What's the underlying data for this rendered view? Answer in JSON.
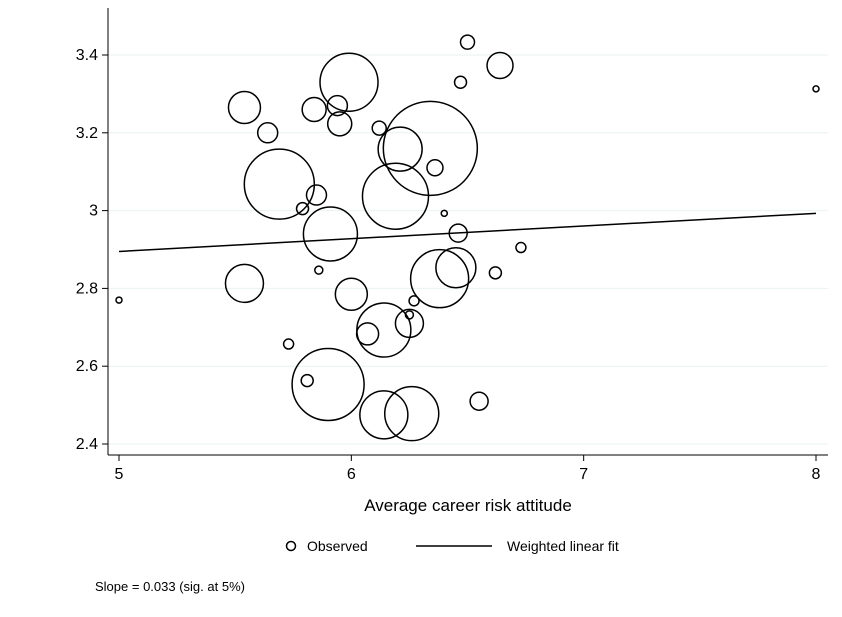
{
  "chart_data": {
    "type": "scatter",
    "title": "",
    "xlabel": "Average career risk attitude",
    "ylabel": "",
    "xlim": [
      5,
      8
    ],
    "ylim": [
      2.4,
      3.45
    ],
    "x_ticks": [
      5,
      6,
      7,
      8
    ],
    "x_tick_labels": [
      "5",
      "6",
      "7",
      "8"
    ],
    "y_ticks": [
      2.4,
      2.6,
      2.8,
      3.0,
      3.2,
      3.4
    ],
    "y_tick_labels": [
      "2.4",
      "2.6",
      "2.8",
      "3",
      "3.2",
      "3.4"
    ],
    "grid": "horizontal",
    "legend_position": "bottom",
    "series": [
      {
        "name": "Observed",
        "kind": "scatter",
        "marker": "hollow-circle",
        "points": [
          {
            "x": 5.0,
            "y": 2.77,
            "r": 3
          },
          {
            "x": 5.54,
            "y": 3.265,
            "r": 16
          },
          {
            "x": 5.54,
            "y": 2.813,
            "r": 19
          },
          {
            "x": 5.64,
            "y": 3.2,
            "r": 10
          },
          {
            "x": 5.69,
            "y": 3.068,
            "r": 35
          },
          {
            "x": 5.73,
            "y": 2.657,
            "r": 5
          },
          {
            "x": 5.79,
            "y": 3.005,
            "r": 6
          },
          {
            "x": 5.81,
            "y": 2.563,
            "r": 6
          },
          {
            "x": 5.84,
            "y": 3.26,
            "r": 12
          },
          {
            "x": 5.85,
            "y": 3.04,
            "r": 10
          },
          {
            "x": 5.86,
            "y": 2.847,
            "r": 4
          },
          {
            "x": 5.9,
            "y": 2.553,
            "r": 36
          },
          {
            "x": 5.91,
            "y": 2.94,
            "r": 27
          },
          {
            "x": 5.94,
            "y": 3.27,
            "r": 10
          },
          {
            "x": 5.95,
            "y": 3.223,
            "r": 12
          },
          {
            "x": 5.99,
            "y": 3.33,
            "r": 29
          },
          {
            "x": 6.0,
            "y": 2.785,
            "r": 16
          },
          {
            "x": 6.07,
            "y": 2.683,
            "r": 11
          },
          {
            "x": 6.12,
            "y": 3.212,
            "r": 7
          },
          {
            "x": 6.14,
            "y": 2.475,
            "r": 24
          },
          {
            "x": 6.14,
            "y": 2.693,
            "r": 27
          },
          {
            "x": 6.19,
            "y": 3.037,
            "r": 33
          },
          {
            "x": 6.21,
            "y": 3.158,
            "r": 22
          },
          {
            "x": 6.25,
            "y": 2.732,
            "r": 4
          },
          {
            "x": 6.26,
            "y": 2.478,
            "r": 27
          },
          {
            "x": 6.25,
            "y": 2.71,
            "r": 14
          },
          {
            "x": 6.27,
            "y": 2.768,
            "r": 5
          },
          {
            "x": 6.34,
            "y": 3.16,
            "r": 47
          },
          {
            "x": 6.36,
            "y": 3.11,
            "r": 8
          },
          {
            "x": 6.38,
            "y": 2.825,
            "r": 29
          },
          {
            "x": 6.4,
            "y": 2.993,
            "r": 3
          },
          {
            "x": 6.45,
            "y": 2.853,
            "r": 20
          },
          {
            "x": 6.46,
            "y": 2.942,
            "r": 9
          },
          {
            "x": 6.47,
            "y": 3.33,
            "r": 6
          },
          {
            "x": 6.5,
            "y": 3.433,
            "r": 7
          },
          {
            "x": 6.55,
            "y": 2.51,
            "r": 9
          },
          {
            "x": 6.62,
            "y": 2.84,
            "r": 6
          },
          {
            "x": 6.64,
            "y": 3.373,
            "r": 13
          },
          {
            "x": 6.73,
            "y": 2.905,
            "r": 5
          },
          {
            "x": 8.0,
            "y": 3.313,
            "r": 3
          }
        ]
      },
      {
        "name": "Weighted linear fit",
        "kind": "line",
        "points": [
          {
            "x": 5.0,
            "y": 2.895
          },
          {
            "x": 8.0,
            "y": 2.993
          }
        ]
      }
    ],
    "annotation": "Slope = 0.033 (sig. at 5%)"
  }
}
